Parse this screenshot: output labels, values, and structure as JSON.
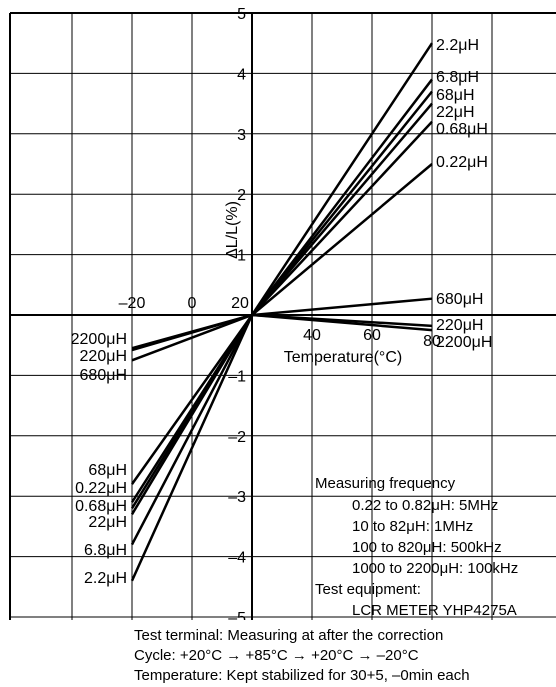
{
  "chart_data": {
    "type": "line",
    "title": "",
    "xlabel": "Temperature(°C)",
    "ylabel": "ΔL/L(%)",
    "xlim": [
      -20,
      80
    ],
    "ylim": [
      -5,
      5
    ],
    "x_tick_labels": [
      "–20",
      "0",
      "20",
      "40",
      "60",
      "80"
    ],
    "y_tick_labels": [
      "5",
      "4",
      "3",
      "2",
      "1",
      "–1",
      "–2",
      "–3",
      "–4",
      "–5"
    ],
    "grid": true,
    "series": [
      {
        "name": "2.2μH",
        "left_name": "2.2μH",
        "x": [
          -20,
          20,
          80
        ],
        "y": [
          -4.4,
          0,
          4.5
        ]
      },
      {
        "name": "6.8μH",
        "left_name": "6.8μH",
        "x": [
          -20,
          20,
          80
        ],
        "y": [
          -3.8,
          0,
          3.9
        ]
      },
      {
        "name": "68μH",
        "left_name": "68μH",
        "x": [
          -20,
          20,
          80
        ],
        "y": [
          -3.1,
          0,
          3.7
        ]
      },
      {
        "name": "22μH",
        "left_name": "22μH",
        "x": [
          -20,
          20,
          80
        ],
        "y": [
          -3.3,
          0,
          3.5
        ]
      },
      {
        "name": "0.68μH",
        "left_name": "0.68μH",
        "x": [
          -20,
          20,
          80
        ],
        "y": [
          -2.8,
          0,
          3.2
        ]
      },
      {
        "name": "0.22μH",
        "left_name": "0.22μH",
        "x": [
          -20,
          20,
          80
        ],
        "y": [
          -3.2,
          0,
          2.5
        ]
      },
      {
        "name": "680μH",
        "left_name": "680μH",
        "x": [
          -20,
          20,
          80
        ],
        "y": [
          -0.75,
          0,
          0.27
        ]
      },
      {
        "name": "220μH",
        "left_name": "220μH",
        "x": [
          -20,
          20,
          80
        ],
        "y": [
          -0.58,
          0,
          -0.18
        ]
      },
      {
        "name": "2200μH",
        "left_name": "2200μH",
        "x": [
          -20,
          20,
          80
        ],
        "y": [
          -0.55,
          0,
          -0.25
        ]
      }
    ],
    "legend": {
      "title": "Measuring frequency",
      "lines": [
        "0.22 to 0.82μH: 5MHz",
        "10 to 82μH: 1MHz",
        "100 to 820μH: 500kHz",
        "1000 to 2200μH: 100kHz"
      ],
      "equipment_label": "Test equipment:",
      "equipment": "LCR METER YHP4275A"
    }
  },
  "footer": [
    "Test terminal: Measuring at after the correction",
    "Cycle: +20°C → +85°C → +20°C → –20°C",
    "Temperature: Kept stabilized for 30+5, –0min each"
  ]
}
